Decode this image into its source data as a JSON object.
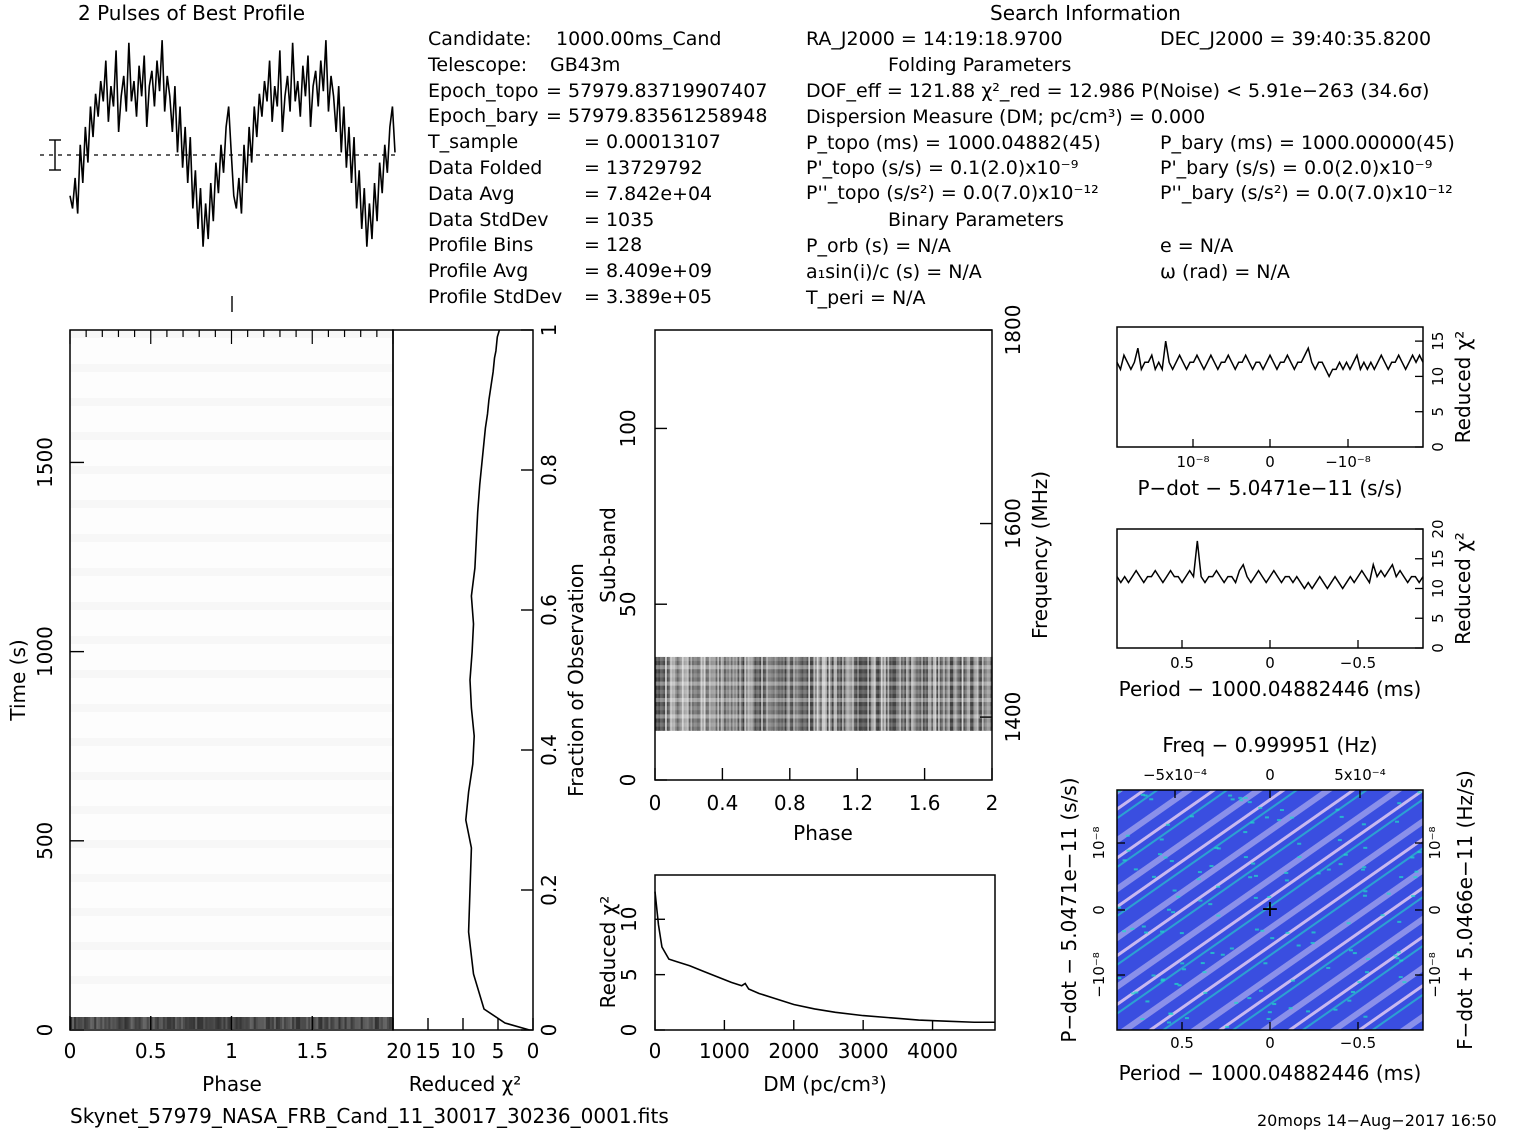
{
  "profile": {
    "title": "2 Pulses of Best Profile"
  },
  "search_info": {
    "title": "Search Information",
    "left": [
      {
        "k": "Candidate:",
        "v": "1000.00ms_Cand"
      },
      {
        "k": "Telescope:",
        "v": "GB43m"
      },
      {
        "k": "Epoch_topo",
        "v": "= 57979.83719907407"
      },
      {
        "k": "Epoch_bary",
        "v": "= 57979.83561258948"
      },
      {
        "k": "T_sample",
        "v": "=   0.00013107"
      },
      {
        "k": "Data Folded",
        "v": "=   13729792"
      },
      {
        "k": "Data Avg",
        "v": "=   7.842e+04"
      },
      {
        "k": "Data StdDev",
        "v": "=   1035"
      },
      {
        "k": "Profile Bins",
        "v": "=   128"
      },
      {
        "k": "Profile Avg",
        "v": "=   8.409e+09"
      },
      {
        "k": "Profile StdDev",
        "v": "=   3.389e+05"
      }
    ],
    "ra": "RA_J2000 = 14:19:18.9700",
    "dec": "DEC_J2000 = 39:40:35.8200",
    "folding_title": "Folding Parameters",
    "dof": "DOF_eff = 121.88  χ²_red = 12.986  P(Noise) < 5.91e−263  (34.6σ)",
    "dm": "Dispersion Measure (DM; pc/cm³) = 0.000",
    "ptopo": "P_topo (ms) =  1000.04882(45)",
    "pbary": "P_bary (ms) =  1000.00000(45)",
    "pdtopo": "P'_topo (s/s) =  0.1(2.0)x10⁻⁹",
    "pdbary": "P'_bary (s/s) = 0.0(2.0)x10⁻⁹",
    "pddtopo": "P''_topo (s/s²) = 0.0(7.0)x10⁻¹²",
    "pddbary": "P''_bary (s/s²) = 0.0(7.0)x10⁻¹²",
    "binary_title": "Binary Parameters",
    "porb": "P_orb (s) = N/A",
    "e": "e = N/A",
    "a1": "a₁sin(i)/c (s) = N/A",
    "omega": "ω (rad) = N/A",
    "tperi": "T_peri = N/A"
  },
  "footer": {
    "filename": "Skynet_57979_NASA_FRB_Cand_11_30017_30236_0001.fits",
    "stamp": "20mops 14−Aug−2017 16:50"
  },
  "colors": {
    "line": "#000000",
    "map_bg": "#3a4ee0",
    "map_hi": "#d8c8f0",
    "map_cyan": "#22d8c8"
  },
  "chart_data": [
    {
      "type": "line",
      "name": "profile",
      "title": "2 Pulses of Best Profile",
      "xlim": [
        0,
        2
      ],
      "values": [
        0.35,
        0.3,
        0.42,
        0.28,
        0.55,
        0.4,
        0.62,
        0.48,
        0.7,
        0.58,
        0.75,
        0.66,
        0.8,
        0.72,
        0.88,
        0.64,
        0.78,
        0.7,
        0.92,
        0.6,
        0.74,
        0.82,
        0.68,
        0.95,
        0.72,
        0.8,
        0.66,
        0.86,
        0.74,
        0.9,
        0.62,
        0.78,
        0.84,
        0.7,
        0.88,
        0.76,
        0.96,
        0.68,
        0.82,
        0.74,
        0.6,
        0.78,
        0.52,
        0.7,
        0.46,
        0.62,
        0.4,
        0.58,
        0.3,
        0.45,
        0.22,
        0.38,
        0.15,
        0.32,
        0.18,
        0.4,
        0.25,
        0.48,
        0.36,
        0.55,
        0.44,
        0.62,
        0.7,
        0.52,
        0.35,
        0.3,
        0.42,
        0.28,
        0.55,
        0.4,
        0.62,
        0.48,
        0.7,
        0.58,
        0.75,
        0.66,
        0.8,
        0.72,
        0.88,
        0.64,
        0.78,
        0.7,
        0.92,
        0.6,
        0.74,
        0.82,
        0.68,
        0.95,
        0.72,
        0.8,
        0.66,
        0.86,
        0.74,
        0.9,
        0.62,
        0.78,
        0.84,
        0.7,
        0.88,
        0.76,
        0.96,
        0.68,
        0.82,
        0.74,
        0.6,
        0.78,
        0.52,
        0.7,
        0.46,
        0.62,
        0.4,
        0.58,
        0.3,
        0.45,
        0.22,
        0.38,
        0.15,
        0.32,
        0.18,
        0.4,
        0.25,
        0.48,
        0.36,
        0.55,
        0.44,
        0.62,
        0.7,
        0.52
      ]
    },
    {
      "type": "heatmap",
      "name": "time-phase",
      "xlabel": "Phase",
      "ylabel": "Time (s)",
      "xlim": [
        0,
        2
      ],
      "ylim": [
        0,
        1850
      ],
      "xticks": [
        0,
        0.5,
        1,
        1.5
      ],
      "yticks": [
        0,
        500,
        1000,
        1500
      ]
    },
    {
      "type": "line",
      "name": "chi2-vs-fraction",
      "xlabel": "Reduced χ²",
      "ylabel": "Fraction of Observation",
      "xlim": [
        20,
        0
      ],
      "ylim": [
        0,
        1
      ],
      "xticks": [
        20,
        15,
        10,
        5,
        0
      ],
      "yticks": [
        0,
        0.2,
        0.4,
        0.6,
        0.8,
        1
      ],
      "x": [
        0.5,
        4,
        7,
        8.5,
        9.2,
        9.0,
        8.8,
        9.6,
        9.2,
        8.6,
        8.4,
        8.8,
        9.0,
        8.7,
        8.5,
        8.8,
        8.3,
        8.1,
        7.9,
        7.6,
        7.3,
        7.0,
        6.8,
        6.5,
        6.3,
        6.0,
        5.7,
        5.5,
        5.3,
        5.1,
        4.8
      ],
      "y": [
        0.0,
        0.01,
        0.03,
        0.08,
        0.14,
        0.2,
        0.26,
        0.3,
        0.34,
        0.38,
        0.42,
        0.46,
        0.5,
        0.54,
        0.58,
        0.62,
        0.66,
        0.7,
        0.74,
        0.78,
        0.81,
        0.84,
        0.86,
        0.88,
        0.9,
        0.92,
        0.94,
        0.96,
        0.97,
        0.99,
        1.0
      ]
    },
    {
      "type": "heatmap",
      "name": "subband-phase",
      "xlabel": "Phase",
      "ylabel": "Sub-band",
      "y2label": "Frequency (MHz)",
      "xlim": [
        0,
        2
      ],
      "ylim": [
        0,
        128
      ],
      "xticks": [
        0,
        0.4,
        0.8,
        1.2,
        1.6,
        2
      ],
      "yticks": [
        0,
        50,
        100
      ],
      "y2ticks": [
        1400,
        1600,
        1800
      ],
      "band_range": [
        14,
        35
      ]
    },
    {
      "type": "line",
      "name": "chi2-vs-dm",
      "xlabel": "DM (pc/cm³)",
      "ylabel": "Reduced χ²",
      "xlim": [
        0,
        4900
      ],
      "ylim": [
        0,
        14
      ],
      "xticks": [
        0,
        1000,
        2000,
        3000,
        4000
      ],
      "yticks": [
        0,
        5,
        10
      ],
      "x": [
        0,
        50,
        100,
        200,
        300,
        500,
        700,
        900,
        1100,
        1250,
        1300,
        1350,
        1500,
        1700,
        2000,
        2300,
        2600,
        3000,
        3400,
        3800,
        4200,
        4600,
        4900
      ],
      "y": [
        12.5,
        9.5,
        7.5,
        6.4,
        6.2,
        5.8,
        5.3,
        4.8,
        4.3,
        4.0,
        4.2,
        3.7,
        3.3,
        2.9,
        2.3,
        1.9,
        1.6,
        1.3,
        1.1,
        0.9,
        0.8,
        0.7,
        0.7
      ]
    },
    {
      "type": "line",
      "name": "chi2-vs-pdot",
      "xlabel": "P−dot − 5.0471e−11 (s/s)",
      "ylabel": "Reduced χ²",
      "ylim": [
        0,
        17
      ],
      "yticks": [
        0,
        5,
        10,
        15
      ],
      "xticklabels": [
        "10⁻⁸",
        "0",
        "−10⁻⁸"
      ],
      "values": [
        12,
        11,
        13,
        12,
        11,
        12,
        14,
        11,
        12,
        12,
        13,
        11,
        12,
        11,
        15,
        12,
        11,
        12,
        13,
        12,
        11,
        12,
        12,
        13,
        12,
        11,
        12,
        13,
        12,
        11,
        12,
        12,
        13,
        12,
        11,
        12,
        12,
        13,
        12,
        11,
        12,
        12,
        11,
        12,
        13,
        12,
        11,
        12,
        12,
        13,
        12,
        11,
        12,
        12,
        13,
        14,
        12,
        11,
        12,
        12,
        11,
        10,
        11,
        11,
        12,
        11,
        12,
        11,
        12,
        13,
        11,
        12,
        11,
        12,
        11,
        12,
        13,
        12,
        11,
        12,
        12,
        13,
        12,
        11,
        12,
        13,
        12,
        13,
        12
      ]
    },
    {
      "type": "line",
      "name": "chi2-vs-period",
      "xlabel": "Period − 1000.04882446 (ms)",
      "ylabel": "Reduced χ²",
      "ylim": [
        0,
        20
      ],
      "yticks": [
        0,
        5,
        10,
        15,
        20
      ],
      "xticklabels": [
        "0.5",
        "0",
        "−0.5"
      ],
      "values": [
        12,
        11,
        12,
        11,
        12,
        13,
        12,
        11,
        12,
        12,
        13,
        12,
        11,
        12,
        13,
        12,
        12,
        11,
        12,
        13,
        12,
        18,
        12,
        11,
        12,
        12,
        13,
        12,
        11,
        12,
        12,
        11,
        13,
        14,
        12,
        11,
        12,
        13,
        12,
        11,
        12,
        13,
        12,
        11,
        12,
        12,
        11,
        12,
        11,
        10,
        11,
        10,
        11,
        12,
        11,
        10,
        11,
        12,
        11,
        10,
        11,
        12,
        11,
        12,
        13,
        12,
        11,
        14,
        12,
        13,
        12,
        13,
        14,
        12,
        13,
        12,
        11,
        12,
        12,
        11,
        12
      ]
    },
    {
      "type": "heatmap",
      "name": "pdot-period",
      "title": "Freq − 0.999951 (Hz)",
      "xlabel": "Period − 1000.04882446 (ms)",
      "ylabel": "P−dot − 5.0471e−11 (s/s)",
      "y2label": "F−dot + 5.0466e−11 (Hz/s)",
      "xticklabels": [
        "0.5",
        "0",
        "−0.5"
      ],
      "x2ticklabels": [
        "−5x10⁻⁴",
        "0",
        "5x10⁻⁴"
      ],
      "yticklabels": [
        "10⁻⁸",
        "0",
        "−10⁻⁸"
      ],
      "y2ticklabels": [
        "−10⁻⁸",
        "0",
        "10⁻⁸"
      ]
    }
  ]
}
